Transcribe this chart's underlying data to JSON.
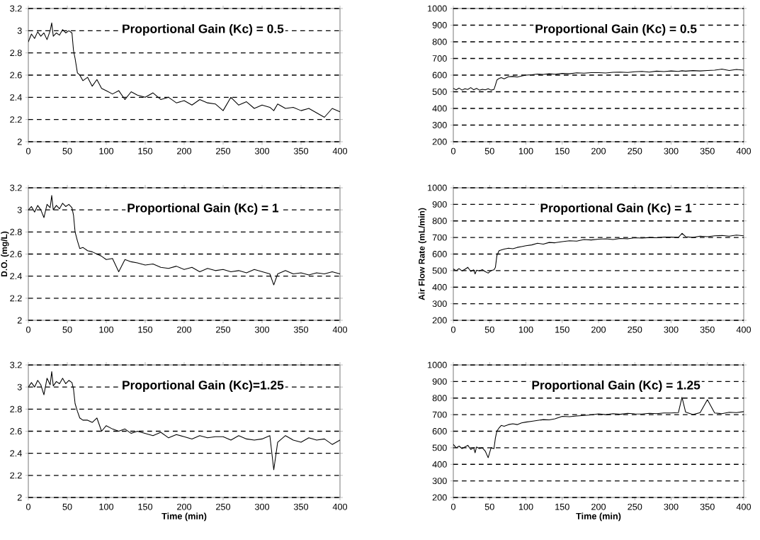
{
  "chart_data": [
    {
      "type": "line",
      "title": "Proportional Gain (Kc) = 0.5",
      "grid": "y",
      "xlim": [
        0,
        400
      ],
      "xticks": [
        0,
        50,
        100,
        150,
        200,
        250,
        300,
        350,
        400
      ],
      "ylim": [
        2,
        3.2
      ],
      "yticks": [
        2,
        2.2,
        2.4,
        2.6,
        2.8,
        3,
        3.2
      ],
      "x": [
        0,
        4,
        8,
        12,
        16,
        20,
        24,
        28,
        30,
        32,
        36,
        40,
        44,
        48,
        52,
        56,
        58,
        60,
        63,
        66,
        70,
        76,
        82,
        88,
        94,
        100,
        108,
        116,
        124,
        132,
        140,
        150,
        160,
        170,
        180,
        190,
        200,
        210,
        220,
        230,
        240,
        250,
        260,
        270,
        280,
        290,
        300,
        310,
        315,
        320,
        330,
        340,
        350,
        360,
        370,
        380,
        390,
        400
      ],
      "series": [
        {
          "color": "#000000",
          "values": [
            2.9,
            2.97,
            2.93,
            2.99,
            2.95,
            2.98,
            2.92,
            3.0,
            3.07,
            2.95,
            2.98,
            2.96,
            3.01,
            2.98,
            3.0,
            2.98,
            2.82,
            2.75,
            2.62,
            2.6,
            2.55,
            2.58,
            2.5,
            2.56,
            2.48,
            2.46,
            2.43,
            2.46,
            2.38,
            2.45,
            2.42,
            2.4,
            2.44,
            2.38,
            2.4,
            2.35,
            2.37,
            2.33,
            2.38,
            2.35,
            2.34,
            2.28,
            2.4,
            2.33,
            2.36,
            2.3,
            2.33,
            2.31,
            2.28,
            2.34,
            2.3,
            2.31,
            2.28,
            2.3,
            2.26,
            2.22,
            2.3,
            2.27
          ]
        }
      ]
    },
    {
      "type": "line",
      "title": "Proportional Gain (Kc) = 0.5",
      "grid": "y",
      "xlim": [
        0,
        400
      ],
      "xticks": [
        0,
        50,
        100,
        150,
        200,
        250,
        300,
        350,
        400
      ],
      "ylim": [
        200,
        1000
      ],
      "yticks": [
        200,
        300,
        400,
        500,
        600,
        700,
        800,
        900,
        1000
      ],
      "x": [
        0,
        4,
        8,
        12,
        16,
        20,
        24,
        28,
        30,
        32,
        36,
        40,
        44,
        48,
        52,
        56,
        58,
        60,
        63,
        66,
        70,
        76,
        82,
        88,
        94,
        100,
        108,
        116,
        124,
        132,
        140,
        150,
        160,
        170,
        180,
        190,
        200,
        210,
        220,
        230,
        240,
        250,
        260,
        270,
        280,
        290,
        300,
        310,
        315,
        320,
        330,
        340,
        350,
        360,
        370,
        380,
        390,
        400
      ],
      "series": [
        {
          "color": "#000000",
          "values": [
            520,
            512,
            522,
            510,
            518,
            514,
            525,
            512,
            516,
            520,
            510,
            515,
            512,
            518,
            510,
            514,
            540,
            570,
            580,
            585,
            578,
            590,
            592,
            588,
            595,
            600,
            602,
            606,
            604,
            608,
            605,
            610,
            608,
            614,
            612,
            615,
            615,
            613,
            617,
            618,
            616,
            620,
            622,
            618,
            624,
            621,
            625,
            622,
            626,
            624,
            627,
            625,
            628,
            630,
            636,
            628,
            634,
            630
          ]
        }
      ]
    },
    {
      "type": "line",
      "title": "Proportional Gain (Kc) = 1",
      "ylabel": "D.O. (mg/L)",
      "grid": "y",
      "xlim": [
        0,
        400
      ],
      "xticks": [
        0,
        50,
        100,
        150,
        200,
        250,
        300,
        350,
        400
      ],
      "ylim": [
        2,
        3.2
      ],
      "yticks": [
        2,
        2.2,
        2.4,
        2.6,
        2.8,
        3,
        3.2
      ],
      "x": [
        0,
        4,
        8,
        12,
        16,
        20,
        24,
        28,
        30,
        32,
        36,
        40,
        44,
        48,
        52,
        56,
        58,
        60,
        63,
        66,
        70,
        76,
        82,
        88,
        94,
        100,
        108,
        116,
        124,
        132,
        140,
        150,
        160,
        170,
        180,
        190,
        200,
        210,
        220,
        230,
        240,
        250,
        260,
        270,
        280,
        290,
        300,
        310,
        315,
        320,
        330,
        340,
        350,
        360,
        370,
        380,
        390,
        400
      ],
      "series": [
        {
          "color": "#000000",
          "values": [
            3.0,
            3.03,
            2.98,
            3.04,
            3.0,
            2.93,
            3.05,
            3.02,
            3.13,
            3.0,
            3.04,
            3.01,
            3.06,
            3.03,
            3.05,
            3.02,
            2.95,
            2.8,
            2.72,
            2.65,
            2.66,
            2.63,
            2.62,
            2.6,
            2.58,
            2.55,
            2.56,
            2.44,
            2.55,
            2.53,
            2.52,
            2.5,
            2.51,
            2.48,
            2.47,
            2.49,
            2.46,
            2.48,
            2.44,
            2.47,
            2.45,
            2.46,
            2.44,
            2.45,
            2.43,
            2.46,
            2.44,
            2.42,
            2.32,
            2.42,
            2.45,
            2.42,
            2.43,
            2.41,
            2.43,
            2.42,
            2.44,
            2.42
          ]
        }
      ]
    },
    {
      "type": "line",
      "title": "Proportional Gain (Kc) = 1",
      "ylabel": "Air Flow Rate (mL/min)",
      "grid": "y",
      "xlim": [
        0,
        400
      ],
      "xticks": [
        0,
        50,
        100,
        150,
        200,
        250,
        300,
        350,
        400
      ],
      "ylim": [
        200,
        1000
      ],
      "yticks": [
        200,
        300,
        400,
        500,
        600,
        700,
        800,
        900,
        1000
      ],
      "x": [
        0,
        4,
        8,
        12,
        16,
        20,
        24,
        28,
        30,
        32,
        36,
        40,
        44,
        48,
        52,
        56,
        58,
        60,
        63,
        66,
        70,
        76,
        82,
        88,
        94,
        100,
        108,
        116,
        124,
        132,
        140,
        150,
        160,
        170,
        180,
        190,
        200,
        210,
        220,
        230,
        240,
        250,
        260,
        270,
        280,
        290,
        300,
        310,
        315,
        320,
        330,
        340,
        350,
        360,
        370,
        380,
        390,
        400
      ],
      "series": [
        {
          "color": "#000000",
          "values": [
            510,
            500,
            512,
            498,
            508,
            520,
            495,
            505,
            480,
            502,
            498,
            506,
            494,
            485,
            500,
            505,
            520,
            590,
            620,
            625,
            630,
            635,
            632,
            640,
            645,
            650,
            655,
            665,
            660,
            670,
            668,
            675,
            680,
            678,
            688,
            685,
            690,
            692,
            688,
            694,
            692,
            698,
            696,
            700,
            698,
            702,
            702,
            700,
            725,
            705,
            700,
            708,
            705,
            710,
            712,
            708,
            714,
            710
          ]
        }
      ]
    },
    {
      "type": "line",
      "title": "Proportional Gain (Kc)=1.25",
      "xlabel": "Time (min)",
      "grid": "y",
      "xlim": [
        0,
        400
      ],
      "xticks": [
        0,
        50,
        100,
        150,
        200,
        250,
        300,
        350,
        400
      ],
      "ylim": [
        2,
        3.2
      ],
      "yticks": [
        2,
        2.2,
        2.4,
        2.6,
        2.8,
        3,
        3.2
      ],
      "x": [
        0,
        4,
        8,
        12,
        16,
        20,
        24,
        28,
        30,
        32,
        36,
        40,
        44,
        48,
        52,
        56,
        58,
        60,
        63,
        66,
        70,
        76,
        82,
        88,
        94,
        100,
        108,
        116,
        124,
        132,
        140,
        150,
        160,
        170,
        180,
        190,
        200,
        210,
        220,
        230,
        240,
        250,
        260,
        270,
        280,
        290,
        300,
        310,
        315,
        320,
        330,
        340,
        350,
        360,
        370,
        380,
        390,
        400
      ],
      "series": [
        {
          "color": "#000000",
          "values": [
            3.0,
            3.04,
            3.0,
            3.06,
            3.02,
            2.93,
            3.08,
            3.02,
            3.14,
            3.01,
            3.05,
            3.03,
            3.08,
            3.03,
            3.06,
            3.04,
            2.98,
            2.85,
            2.78,
            2.72,
            2.7,
            2.7,
            2.68,
            2.72,
            2.6,
            2.65,
            2.62,
            2.6,
            2.62,
            2.58,
            2.6,
            2.58,
            2.56,
            2.59,
            2.54,
            2.57,
            2.55,
            2.53,
            2.56,
            2.54,
            2.55,
            2.55,
            2.52,
            2.56,
            2.53,
            2.52,
            2.53,
            2.56,
            2.25,
            2.5,
            2.56,
            2.52,
            2.5,
            2.54,
            2.52,
            2.53,
            2.48,
            2.52
          ]
        }
      ]
    },
    {
      "type": "line",
      "title": "Proportional Gain (Kc) = 1.25",
      "xlabel": "Time (min)",
      "grid": "y",
      "xlim": [
        0,
        400
      ],
      "xticks": [
        0,
        50,
        100,
        150,
        200,
        250,
        300,
        350,
        400
      ],
      "ylim": [
        200,
        1000
      ],
      "yticks": [
        200,
        300,
        400,
        500,
        600,
        700,
        800,
        900,
        1000
      ],
      "x": [
        0,
        4,
        8,
        12,
        16,
        20,
        24,
        28,
        30,
        32,
        36,
        40,
        44,
        48,
        52,
        56,
        58,
        60,
        63,
        66,
        70,
        76,
        82,
        88,
        94,
        100,
        108,
        116,
        124,
        132,
        140,
        150,
        160,
        170,
        180,
        190,
        200,
        210,
        220,
        230,
        240,
        250,
        260,
        270,
        280,
        290,
        300,
        310,
        315,
        320,
        330,
        340,
        350,
        360,
        370,
        380,
        390,
        400
      ],
      "series": [
        {
          "color": "#000000",
          "values": [
            520,
            500,
            510,
            495,
            505,
            515,
            490,
            500,
            470,
            505,
            495,
            500,
            480,
            440,
            500,
            495,
            560,
            600,
            620,
            635,
            630,
            640,
            645,
            640,
            650,
            655,
            660,
            665,
            670,
            668,
            675,
            690,
            688,
            692,
            695,
            698,
            705,
            700,
            706,
            702,
            708,
            705,
            704,
            708,
            706,
            710,
            710,
            712,
            805,
            715,
            700,
            712,
            790,
            710,
            706,
            714,
            712,
            718
          ]
        }
      ]
    }
  ]
}
